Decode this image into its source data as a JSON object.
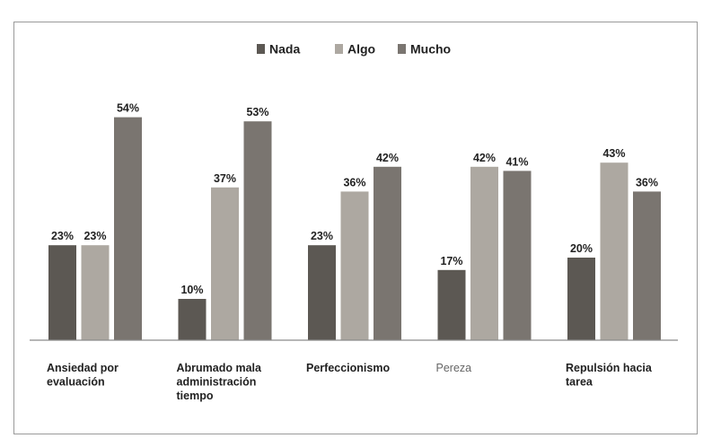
{
  "chart_data": {
    "type": "bar",
    "categories": [
      [
        "Ansiedad por",
        "evaluación"
      ],
      [
        "Abrumado mala",
        "administración",
        "tiempo"
      ],
      [
        "Perfeccionismo"
      ],
      [
        "Pereza"
      ],
      [
        "Repulsión hacia",
        "tarea"
      ]
    ],
    "series": [
      {
        "name": "Nada",
        "color": "#5c5853",
        "values": [
          23,
          10,
          23,
          17,
          20
        ]
      },
      {
        "name": "Algo",
        "color": "#ada8a1",
        "values": [
          23,
          37,
          36,
          42,
          43
        ]
      },
      {
        "name": "Mucho",
        "color": "#7a7570",
        "values": [
          54,
          53,
          42,
          41,
          36
        ]
      }
    ],
    "value_suffix": "%",
    "ylim": [
      0,
      60
    ],
    "legend_position": "top-center",
    "grid": false,
    "muted_categories": [
      3
    ]
  }
}
